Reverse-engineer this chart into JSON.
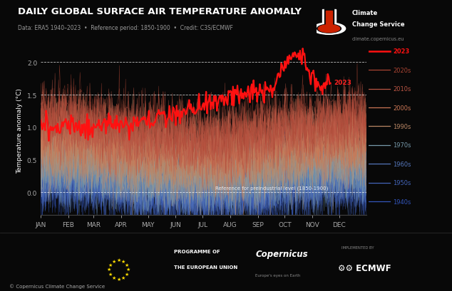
{
  "title": "DAILY GLOBAL SURFACE AIR TEMPERATURE ANOMALY",
  "subtitle": "Data: ERA5 1940–2023  •  Reference period: 1850-1900  •  Credit: C3S/ECMWF",
  "ylabel": "Temperature anomaly (°C)",
  "background_color": "#080808",
  "plot_bg_color": "#080808",
  "title_color": "#ffffff",
  "subtitle_color": "#aaaaaa",
  "ylabel_color": "#ffffff",
  "ref_label": "Reference for preindustrial level (1850-1900)",
  "ylim": [
    -0.35,
    2.25
  ],
  "yticks": [
    0.0,
    0.5,
    1.0,
    1.5,
    2.0
  ],
  "dashed_lines": [
    0.0,
    1.5,
    2.0
  ],
  "months": [
    "JAN",
    "FEB",
    "MAR",
    "APR",
    "MAY",
    "JUN",
    "JUL",
    "AUG",
    "SEP",
    "OCT",
    "NOV",
    "DEC"
  ],
  "month_days": [
    0,
    31,
    59,
    90,
    120,
    151,
    181,
    212,
    243,
    273,
    304,
    334
  ],
  "decade_colors": {
    "1940s": "#3355bb",
    "1950s": "#4466bb",
    "1960s": "#5577bb",
    "1970s": "#7799aa",
    "1980s": "#aa9988",
    "1990s": "#bb8866",
    "2000s": "#cc7755",
    "2010s": "#bb5544",
    "2020s": "#aa4433",
    "2023": "#ff1111"
  },
  "legend_entries": [
    "2023",
    "2020s",
    "2010s",
    "2000s",
    "1990s",
    "1970s",
    "1960s",
    "1950s",
    "1940s"
  ],
  "legend_colors": [
    "#ff1111",
    "#aa4433",
    "#bb5544",
    "#cc7755",
    "#bb8866",
    "#7799aa",
    "#5577bb",
    "#4466bb",
    "#3355bb"
  ],
  "copyright_text": "© Copernicus Climate Change Service",
  "website": "climate.copernicus.eu",
  "tick_color": "#aaaaaa",
  "footer_bg": "#0d0d0d"
}
